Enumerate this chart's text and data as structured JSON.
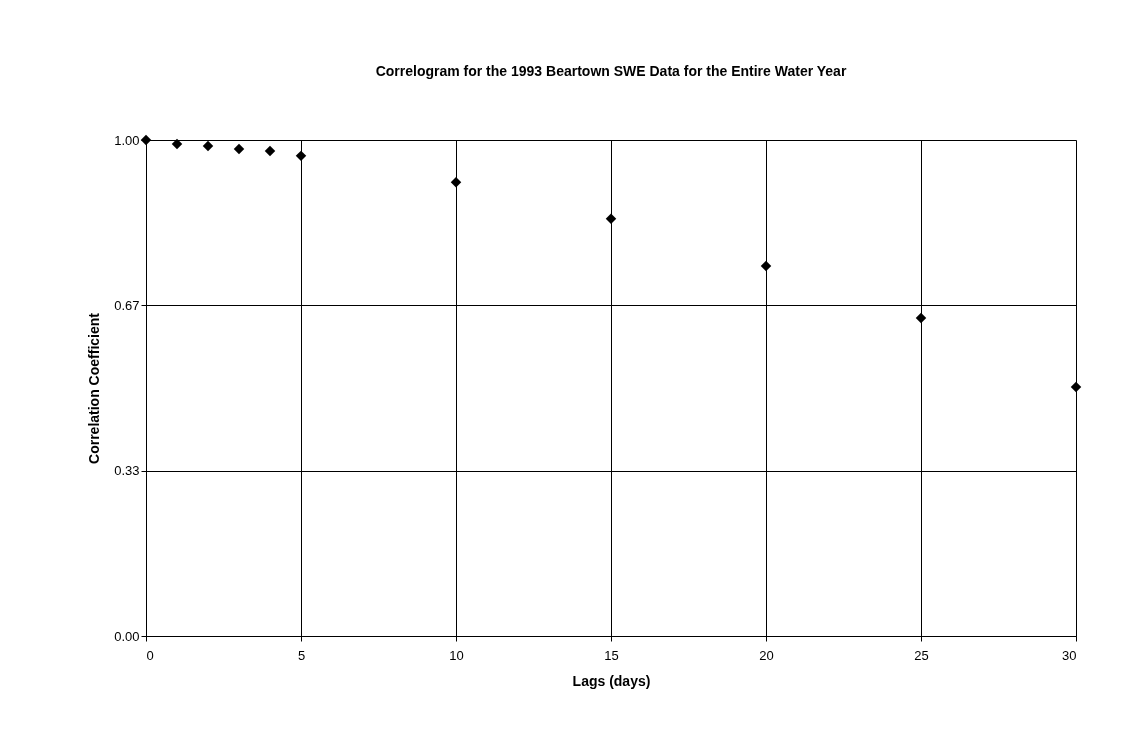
{
  "chart_data": {
    "type": "scatter",
    "title": "Correlogram for the 1993 Beartown SWE Data for the Entire Water Year",
    "xlabel": "Lags (days)",
    "ylabel": "Correlation Coefficient",
    "x": [
      0,
      1,
      2,
      3,
      4,
      5,
      10,
      15,
      20,
      25,
      30
    ],
    "series": [
      {
        "color": "#000000",
        "values": [
          1.0,
          0.992,
          0.988,
          0.982,
          0.978,
          0.968,
          0.915,
          0.841,
          0.746,
          0.641,
          0.502
        ]
      }
    ],
    "xlim": [
      0,
      30
    ],
    "xticks": [
      0,
      5,
      10,
      15,
      20,
      25,
      30
    ],
    "ylim": [
      0,
      1
    ],
    "yticks": [
      {
        "value": 0,
        "label": "0.00"
      },
      {
        "value": 0.3333,
        "label": "0.33"
      },
      {
        "value": 0.6667,
        "label": "0.67"
      },
      {
        "value": 1,
        "label": "1.00"
      }
    ],
    "grid": true,
    "marker": "diamond"
  }
}
